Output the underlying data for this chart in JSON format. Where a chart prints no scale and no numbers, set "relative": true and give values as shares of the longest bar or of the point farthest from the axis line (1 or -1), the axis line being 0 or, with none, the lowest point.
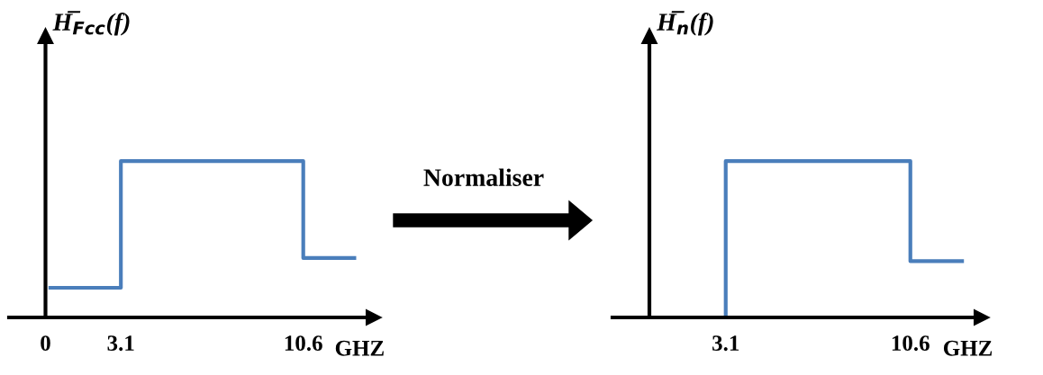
{
  "chart_data": [
    {
      "type": "step",
      "relative": true,
      "ylabel": "H̅$_{Fcc}$(f)",
      "xlabel": "GHZ",
      "xlim": [
        -1.5,
        13.5
      ],
      "xticks": [
        0,
        3.1,
        10.6
      ],
      "annotations": [
        "Normaliser"
      ],
      "series": [
        {
          "color": "#4a7ebb",
          "x": [
            0.2,
            3.1,
            10.6,
            12.7
          ],
          "values": [
            0.19,
            1,
            0.38,
            0.38
          ]
        }
      ]
    },
    {
      "type": "step",
      "relative": true,
      "ylabel": "H̅$_{n}$(f)",
      "xlabel": "GHZ",
      "xlim": [
        -1.5,
        13.5
      ],
      "xticks": [
        3.1,
        10.6
      ],
      "series": [
        {
          "color": "#4a7ebb",
          "x": [
            3.1,
            3.1,
            10.6,
            12.7
          ],
          "values": [
            0,
            1,
            0.36,
            0.36
          ]
        }
      ]
    }
  ]
}
